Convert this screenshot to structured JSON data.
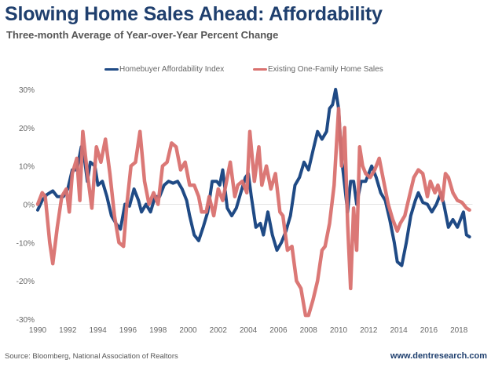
{
  "header": {
    "title": "Slowing Home Sales Ahead: Affordability",
    "subtitle": "Three-month Average of Year-over-Year Percent Change"
  },
  "footer": {
    "source": "Source: Bloomberg, National Association of Realtors",
    "website": "www.dentresearch.com"
  },
  "chart_data": {
    "type": "line",
    "title": "Slowing Home Sales Ahead: Affordability",
    "subtitle": "Three-month Average of Year-over-Year Percent Change",
    "xlabel": "",
    "ylabel": "",
    "xlim": [
      1990,
      2018.9
    ],
    "ylim": [
      -30,
      30
    ],
    "grid": false,
    "zero_line": true,
    "legend_position": "top-center",
    "x_ticks": [
      "1990",
      "1992",
      "1994",
      "1996",
      "1998",
      "2000",
      "2002",
      "2004",
      "2006",
      "2008",
      "2010",
      "2012",
      "2014",
      "2016",
      "2018"
    ],
    "y_ticks": [
      "30%",
      "20%",
      "10%",
      "0%",
      "-10%",
      "-20%",
      "-30%"
    ],
    "y_tick_values": [
      30,
      20,
      10,
      0,
      -10,
      -20,
      -30
    ],
    "series": [
      {
        "name": "Homebuyer Affordability Index",
        "color": "#1f4a85",
        "points": [
          [
            1990.0,
            -1.5
          ],
          [
            1990.3,
            1
          ],
          [
            1990.6,
            2.5
          ],
          [
            1991.0,
            3.5
          ],
          [
            1991.3,
            2
          ],
          [
            1991.7,
            2
          ],
          [
            1992.0,
            4
          ],
          [
            1992.3,
            9
          ],
          [
            1992.6,
            9
          ],
          [
            1992.9,
            15
          ],
          [
            1993.1,
            12
          ],
          [
            1993.3,
            6
          ],
          [
            1993.5,
            11
          ],
          [
            1993.8,
            10
          ],
          [
            1994.0,
            5
          ],
          [
            1994.3,
            6
          ],
          [
            1994.6,
            2
          ],
          [
            1994.9,
            -3
          ],
          [
            1995.2,
            -5
          ],
          [
            1995.5,
            -6.5
          ],
          [
            1995.8,
            0
          ],
          [
            1996.1,
            -0.5
          ],
          [
            1996.4,
            4
          ],
          [
            1996.7,
            1
          ],
          [
            1996.9,
            -2
          ],
          [
            1997.2,
            0
          ],
          [
            1997.5,
            -2
          ],
          [
            1997.8,
            2
          ],
          [
            1998.1,
            2
          ],
          [
            1998.4,
            5
          ],
          [
            1998.7,
            6
          ],
          [
            1999.0,
            5.5
          ],
          [
            1999.3,
            6
          ],
          [
            1999.6,
            4
          ],
          [
            1999.9,
            1
          ],
          [
            2000.1,
            -3
          ],
          [
            2000.4,
            -8
          ],
          [
            2000.7,
            -9.5
          ],
          [
            2001.0,
            -6
          ],
          [
            2001.3,
            -2
          ],
          [
            2001.6,
            6
          ],
          [
            2001.9,
            6
          ],
          [
            2002.1,
            5
          ],
          [
            2002.3,
            9
          ],
          [
            2002.6,
            -1
          ],
          [
            2002.9,
            -3
          ],
          [
            2003.2,
            -1
          ],
          [
            2003.5,
            3
          ],
          [
            2003.8,
            7
          ],
          [
            2004.0,
            8
          ],
          [
            2004.2,
            2
          ],
          [
            2004.5,
            -6
          ],
          [
            2004.8,
            -5
          ],
          [
            2005.0,
            -8
          ],
          [
            2005.3,
            -2
          ],
          [
            2005.6,
            -8
          ],
          [
            2005.9,
            -12
          ],
          [
            2006.2,
            -10
          ],
          [
            2006.5,
            -7
          ],
          [
            2006.8,
            -3
          ],
          [
            2007.1,
            5
          ],
          [
            2007.4,
            7
          ],
          [
            2007.7,
            11
          ],
          [
            2008.0,
            9
          ],
          [
            2008.3,
            14
          ],
          [
            2008.6,
            19
          ],
          [
            2008.9,
            17
          ],
          [
            2009.2,
            19
          ],
          [
            2009.4,
            25
          ],
          [
            2009.6,
            26
          ],
          [
            2009.8,
            30
          ],
          [
            2010.0,
            25
          ],
          [
            2010.2,
            12
          ],
          [
            2010.4,
            5
          ],
          [
            2010.6,
            -2
          ],
          [
            2010.8,
            6
          ],
          [
            2011.0,
            6
          ],
          [
            2011.2,
            0
          ],
          [
            2011.5,
            6
          ],
          [
            2011.8,
            6
          ],
          [
            2012.0,
            8
          ],
          [
            2012.2,
            10
          ],
          [
            2012.5,
            7
          ],
          [
            2012.8,
            3
          ],
          [
            2013.1,
            1
          ],
          [
            2013.4,
            -4
          ],
          [
            2013.7,
            -10
          ],
          [
            2013.9,
            -15
          ],
          [
            2014.2,
            -16
          ],
          [
            2014.5,
            -10
          ],
          [
            2014.8,
            -3
          ],
          [
            2015.1,
            1
          ],
          [
            2015.3,
            3
          ],
          [
            2015.6,
            0.5
          ],
          [
            2015.9,
            0
          ],
          [
            2016.2,
            -2
          ],
          [
            2016.5,
            0
          ],
          [
            2016.8,
            3
          ],
          [
            2017.0,
            0
          ],
          [
            2017.3,
            -6
          ],
          [
            2017.6,
            -4
          ],
          [
            2017.9,
            -6
          ],
          [
            2018.1,
            -4
          ],
          [
            2018.3,
            -2
          ],
          [
            2018.5,
            -8
          ],
          [
            2018.7,
            -8.5
          ]
        ]
      },
      {
        "name": "Existing One-Family Home Sales",
        "color": "#d9716f",
        "points": [
          [
            1990.0,
            0
          ],
          [
            1990.3,
            3
          ],
          [
            1990.5,
            2
          ],
          [
            1990.8,
            -10
          ],
          [
            1991.0,
            -15.5
          ],
          [
            1991.3,
            -6
          ],
          [
            1991.6,
            2
          ],
          [
            1991.9,
            4
          ],
          [
            1992.1,
            -2
          ],
          [
            1992.3,
            8
          ],
          [
            1992.6,
            12
          ],
          [
            1992.8,
            1
          ],
          [
            1993.0,
            19
          ],
          [
            1993.3,
            8
          ],
          [
            1993.6,
            -1
          ],
          [
            1993.9,
            15
          ],
          [
            1994.2,
            11
          ],
          [
            1994.5,
            17
          ],
          [
            1994.8,
            8
          ],
          [
            1995.1,
            -3
          ],
          [
            1995.4,
            -10
          ],
          [
            1995.7,
            -11
          ],
          [
            1995.9,
            -1
          ],
          [
            1996.2,
            10
          ],
          [
            1996.5,
            11
          ],
          [
            1996.8,
            19
          ],
          [
            1997.1,
            6
          ],
          [
            1997.4,
            0
          ],
          [
            1997.7,
            3
          ],
          [
            1998.0,
            0
          ],
          [
            1998.3,
            10
          ],
          [
            1998.6,
            11
          ],
          [
            1998.9,
            16
          ],
          [
            1999.2,
            15
          ],
          [
            1999.5,
            9
          ],
          [
            1999.8,
            11
          ],
          [
            2000.1,
            5
          ],
          [
            2000.4,
            5
          ],
          [
            2000.7,
            2
          ],
          [
            2000.9,
            -2
          ],
          [
            2001.2,
            -2
          ],
          [
            2001.4,
            2
          ],
          [
            2001.7,
            -3
          ],
          [
            2002.0,
            4
          ],
          [
            2002.3,
            1
          ],
          [
            2002.5,
            5
          ],
          [
            2002.8,
            11
          ],
          [
            2003.1,
            2
          ],
          [
            2003.3,
            5
          ],
          [
            2003.6,
            6
          ],
          [
            2003.9,
            3
          ],
          [
            2004.1,
            19
          ],
          [
            2004.4,
            6
          ],
          [
            2004.7,
            15
          ],
          [
            2004.9,
            5
          ],
          [
            2005.2,
            10
          ],
          [
            2005.5,
            4
          ],
          [
            2005.8,
            8
          ],
          [
            2006.1,
            -2
          ],
          [
            2006.3,
            -3
          ],
          [
            2006.6,
            -12
          ],
          [
            2006.9,
            -11
          ],
          [
            2007.2,
            -20
          ],
          [
            2007.5,
            -22
          ],
          [
            2007.8,
            -29
          ],
          [
            2008.0,
            -29
          ],
          [
            2008.3,
            -25
          ],
          [
            2008.6,
            -20
          ],
          [
            2008.9,
            -12
          ],
          [
            2009.1,
            -11
          ],
          [
            2009.4,
            -5
          ],
          [
            2009.7,
            5
          ],
          [
            2010.0,
            25
          ],
          [
            2010.2,
            10
          ],
          [
            2010.4,
            20
          ],
          [
            2010.6,
            -5
          ],
          [
            2010.8,
            -22
          ],
          [
            2011.0,
            -1
          ],
          [
            2011.2,
            -12
          ],
          [
            2011.4,
            15
          ],
          [
            2011.6,
            10
          ],
          [
            2011.8,
            8
          ],
          [
            2012.1,
            7
          ],
          [
            2012.4,
            9
          ],
          [
            2012.7,
            12
          ],
          [
            2013.0,
            6
          ],
          [
            2013.3,
            0
          ],
          [
            2013.6,
            -4
          ],
          [
            2013.9,
            -7
          ],
          [
            2014.1,
            -5
          ],
          [
            2014.4,
            -3
          ],
          [
            2014.7,
            2
          ],
          [
            2015.0,
            7
          ],
          [
            2015.3,
            9
          ],
          [
            2015.6,
            8
          ],
          [
            2015.9,
            2
          ],
          [
            2016.1,
            6
          ],
          [
            2016.4,
            3
          ],
          [
            2016.6,
            5
          ],
          [
            2016.9,
            1
          ],
          [
            2017.1,
            8
          ],
          [
            2017.3,
            7
          ],
          [
            2017.6,
            3
          ],
          [
            2017.9,
            1
          ],
          [
            2018.2,
            0.5
          ],
          [
            2018.5,
            -1
          ],
          [
            2018.7,
            -1.5
          ]
        ]
      }
    ]
  }
}
